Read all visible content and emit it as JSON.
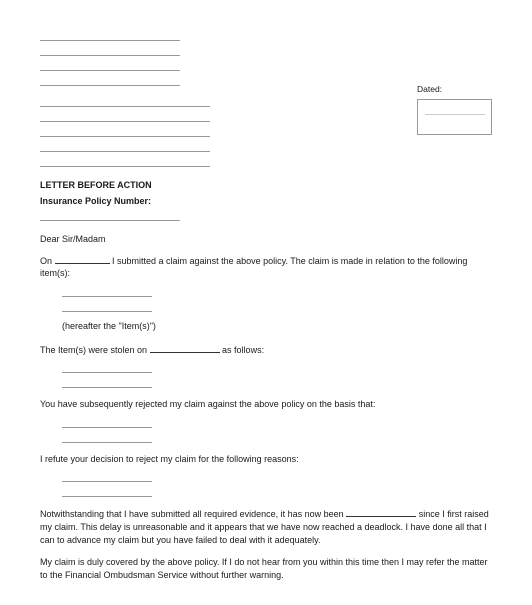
{
  "date_label": "Dated:",
  "section_headers": {
    "letter_before_action": "LETTER BEFORE ACTION",
    "insurance_policy": "Insurance Policy Number:"
  },
  "salutation": "Dear Sir/Madam",
  "paragraphs": {
    "intro_part1": "On ",
    "intro_part2": " I submitted a claim against the above policy. The claim is made in relation to the following item(s):",
    "hereafter": "(hereafter the \"Item(s)\")",
    "stolen_part1": "The Item(s) were stolen on ",
    "stolen_part2": " as follows:",
    "rejected": "You have subsequently rejected my claim against the above policy on the basis that:",
    "refute": "I refute your decision to reject my claim for the following reasons:",
    "notwithstanding_part1": "Notwithstanding that I have submitted all required evidence, it has now been ",
    "notwithstanding_part2": " since I first raised my claim. This delay is unreasonable and it appears that we have now reached a deadlock. I have done all that I can to advance my claim but you have failed to deal with it adequately.",
    "ombudsman": "My claim is duly covered by the above policy. If I do not hear from you within this time then I may refer the matter to the Financial Ombudsman Service without further warning."
  },
  "colors": {
    "text": "#1a1a1a",
    "line": "#999999",
    "bg": "#ffffff"
  }
}
